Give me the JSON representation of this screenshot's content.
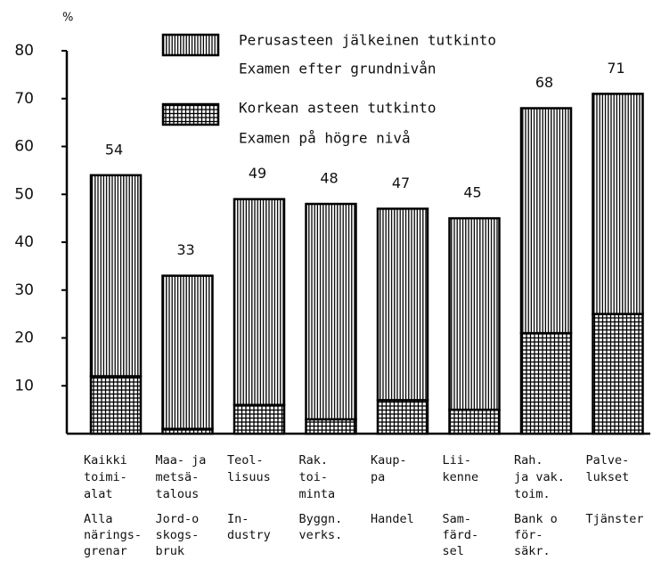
{
  "chart_data": {
    "type": "stacked_bar",
    "y_label": "%",
    "categories": [
      [
        "Kaikki",
        "toimi-",
        "alat"
      ],
      [
        "Maa- ja",
        "metsä-",
        "talous"
      ],
      [
        "Teol-",
        "lisuus"
      ],
      [
        "Rak.",
        "toi-",
        "minta"
      ],
      [
        "Kaup-",
        "pa"
      ],
      [
        "Lii-",
        "kenne"
      ],
      [
        "Rah.",
        "ja vak.",
        "toim."
      ],
      [
        "Palve-",
        "lukset"
      ]
    ],
    "categories_sv": [
      [
        "Alla",
        "närings-",
        "grenar"
      ],
      [
        "Jord-o",
        "skogs-",
        "bruk"
      ],
      [
        "In-",
        "dustry"
      ],
      [
        "Byggn.",
        "verks."
      ],
      [
        "Handel"
      ],
      [
        "Sam-",
        "färd-",
        "sel"
      ],
      [
        "Bank o",
        "för-",
        "säkr."
      ],
      [
        "Tjänster"
      ]
    ],
    "series": [
      {
        "name": "Korkean asteen tutkinto",
        "name_sv": "Examen på högre nivå",
        "color": "#000000",
        "pattern": "crosshatch",
        "values": [
          12,
          1,
          6,
          3,
          7,
          5,
          21,
          25
        ]
      },
      {
        "name": "Perusasteen jälkeinen tutkinto",
        "name_sv": "Examen efter grundnivån",
        "color": "#000000",
        "pattern": "vertical",
        "values": [
          42,
          32,
          43,
          45,
          40,
          40,
          47,
          46
        ]
      }
    ],
    "totals": [
      54,
      33,
      49,
      48,
      47,
      45,
      68,
      71
    ],
    "ylim": [
      0,
      80
    ],
    "yticks": [
      10,
      20,
      30,
      40,
      50,
      60,
      70,
      80
    ]
  }
}
